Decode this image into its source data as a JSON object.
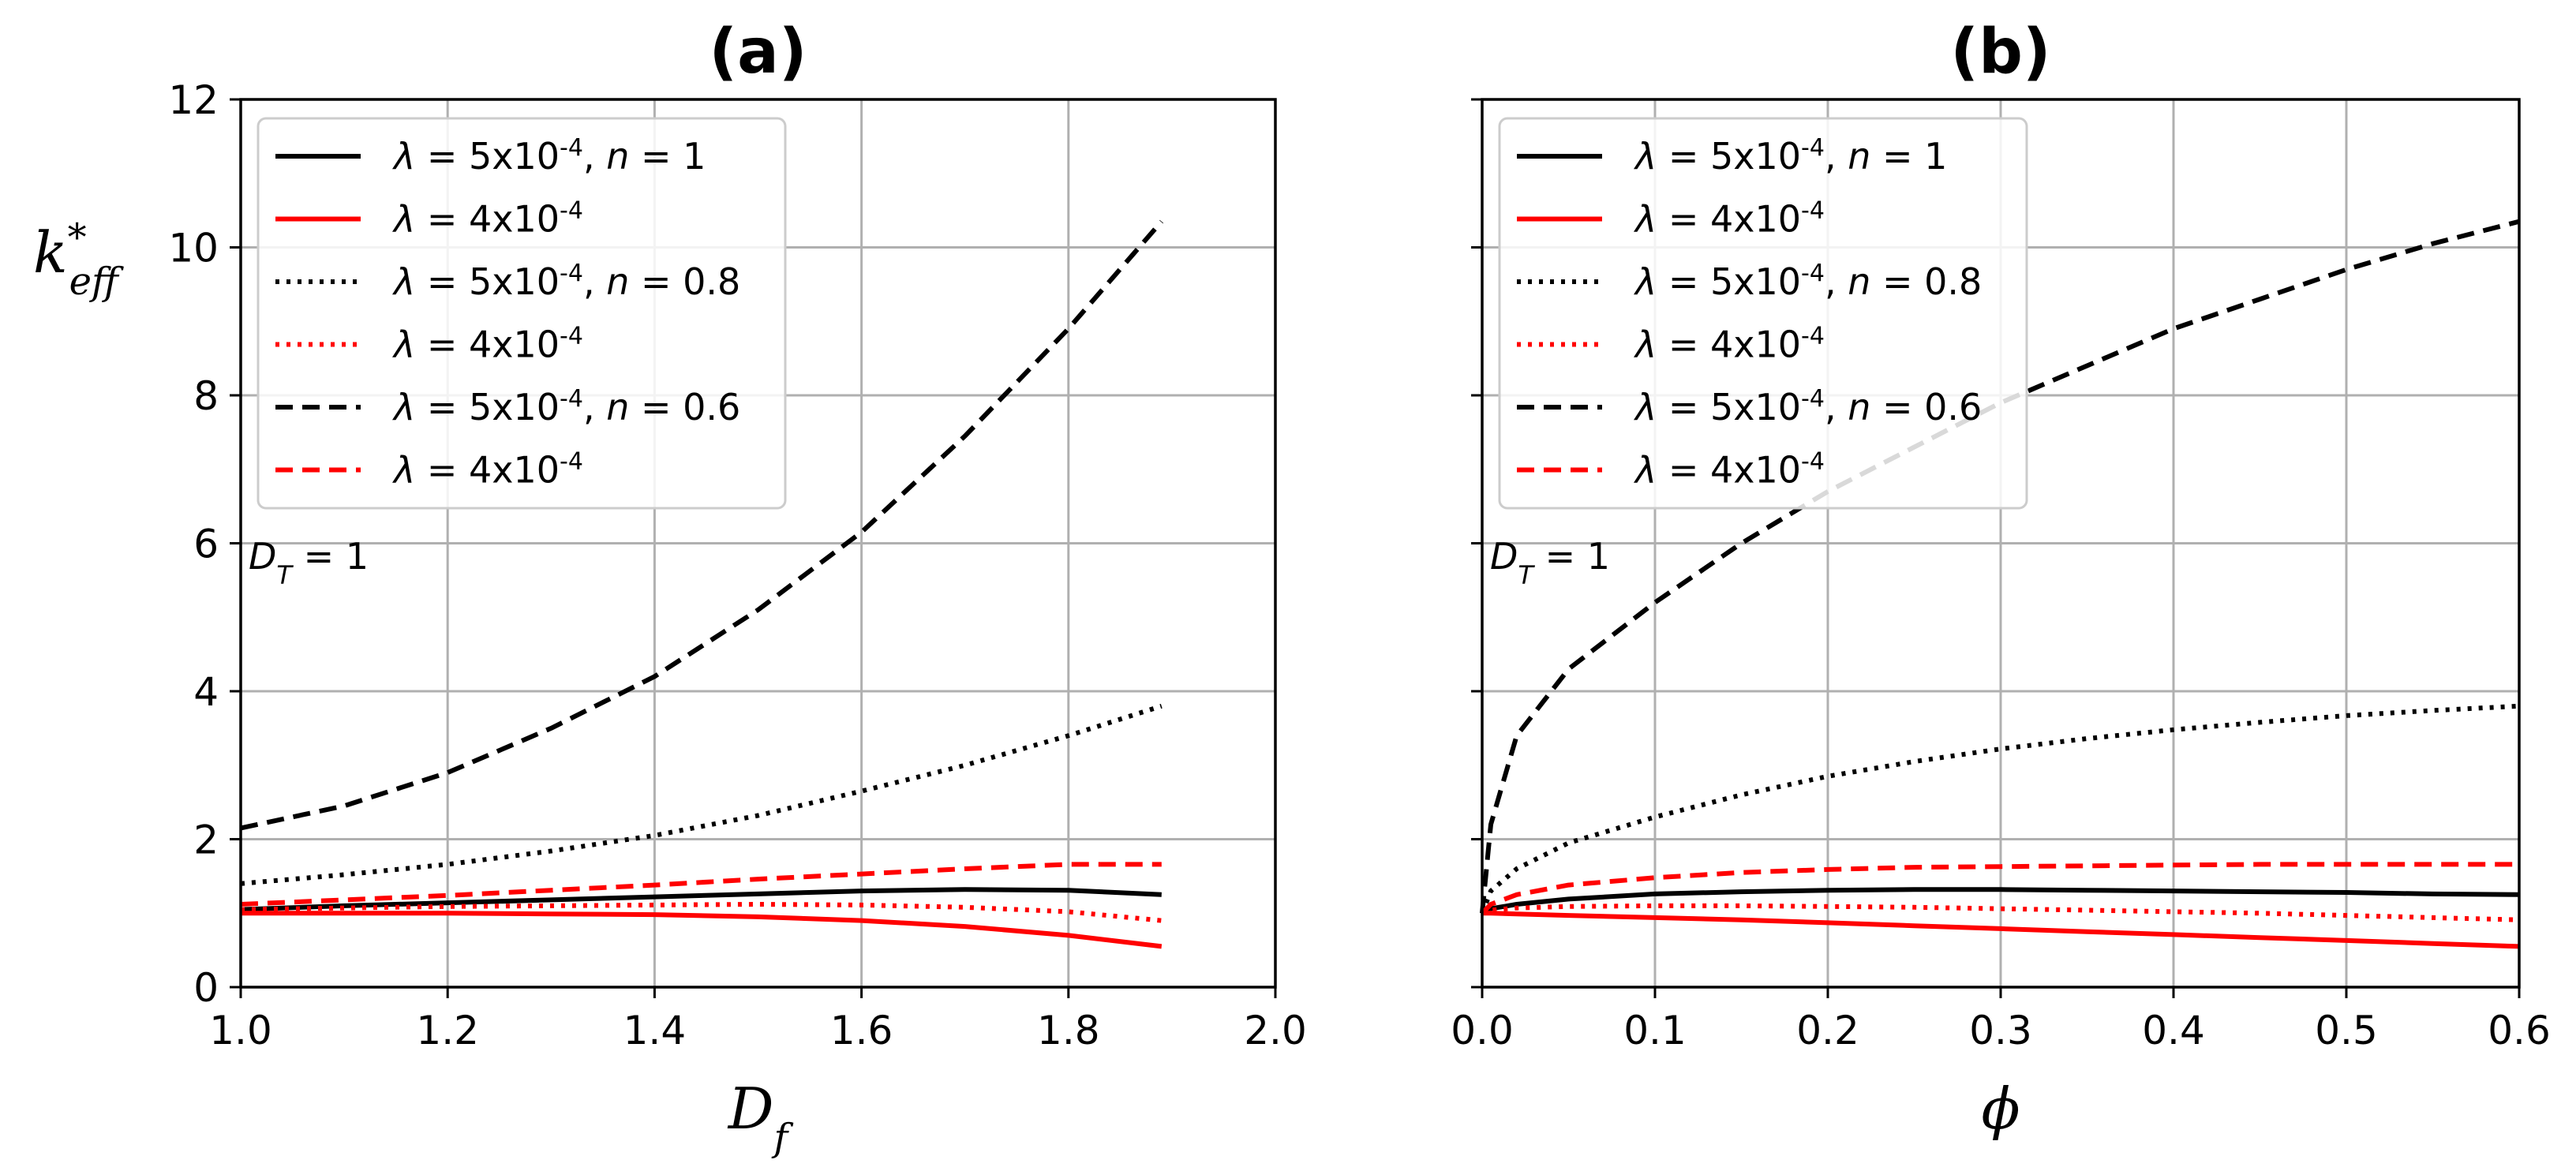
{
  "colors": {
    "black": "#000000",
    "red": "#ff0000",
    "grid": "#b0b0b0"
  },
  "chart_data": [
    {
      "type": "line",
      "title": "(a)",
      "xlabel": "D_f",
      "ylabel": "k*_eff",
      "xlim": [
        1.0,
        2.0
      ],
      "ylim": [
        0,
        12
      ],
      "xticks": [
        "1.0",
        "1.2",
        "1.4",
        "1.6",
        "1.8",
        "2.0"
      ],
      "yticks": [
        "0",
        "2",
        "4",
        "6",
        "8",
        "10",
        "12"
      ],
      "annotation": "D_T = 1",
      "grid": true,
      "legend_position": "top-left",
      "x": [
        1.0,
        1.1,
        1.2,
        1.3,
        1.4,
        1.5,
        1.6,
        1.7,
        1.8,
        1.89
      ],
      "series": [
        {
          "name": "λ = 5x10^-4, n = 1",
          "color": "#000000",
          "style": "solid",
          "values": [
            1.05,
            1.1,
            1.14,
            1.18,
            1.22,
            1.26,
            1.3,
            1.32,
            1.31,
            1.25
          ]
        },
        {
          "name": "λ = 4x10^-4",
          "color": "#ff0000",
          "style": "solid",
          "values": [
            1.0,
            1.0,
            1.0,
            0.99,
            0.98,
            0.95,
            0.9,
            0.82,
            0.7,
            0.55
          ]
        },
        {
          "name": "λ = 5x10^-4, n = 0.8",
          "color": "#000000",
          "style": "dotted",
          "values": [
            1.4,
            1.52,
            1.66,
            1.84,
            2.05,
            2.32,
            2.65,
            3.0,
            3.4,
            3.8
          ]
        },
        {
          "name": "λ = 4x10^-4",
          "color": "#ff0000",
          "style": "dotted",
          "values": [
            1.05,
            1.07,
            1.09,
            1.1,
            1.11,
            1.12,
            1.11,
            1.08,
            1.02,
            0.9
          ]
        },
        {
          "name": "λ = 5x10^-4, n = 0.6",
          "color": "#000000",
          "style": "dashed",
          "values": [
            2.15,
            2.45,
            2.9,
            3.5,
            4.2,
            5.1,
            6.15,
            7.45,
            8.9,
            10.35
          ]
        },
        {
          "name": "λ = 4x10^-4",
          "color": "#ff0000",
          "style": "dashed",
          "values": [
            1.12,
            1.18,
            1.24,
            1.31,
            1.38,
            1.46,
            1.53,
            1.6,
            1.66,
            1.66
          ]
        }
      ]
    },
    {
      "type": "line",
      "title": "(b)",
      "xlabel": "ϕ",
      "ylabel": "",
      "xlim": [
        0.0,
        0.6
      ],
      "ylim": [
        0,
        12
      ],
      "xticks": [
        "0.0",
        "0.1",
        "0.2",
        "0.3",
        "0.4",
        "0.5",
        "0.6"
      ],
      "yticks": [
        "0",
        "2",
        "4",
        "6",
        "8",
        "10",
        "12"
      ],
      "annotation": "D_T = 1",
      "grid": true,
      "legend_position": "top-left",
      "x": [
        0.0,
        0.005,
        0.02,
        0.05,
        0.1,
        0.15,
        0.2,
        0.25,
        0.3,
        0.35,
        0.4,
        0.45,
        0.5,
        0.55,
        0.6
      ],
      "series": [
        {
          "name": "λ = 5x10^-4, n = 1",
          "color": "#000000",
          "style": "solid",
          "values": [
            1.0,
            1.06,
            1.12,
            1.19,
            1.26,
            1.29,
            1.31,
            1.32,
            1.32,
            1.31,
            1.3,
            1.29,
            1.28,
            1.26,
            1.25
          ]
        },
        {
          "name": "λ = 4x10^-4",
          "color": "#ff0000",
          "style": "solid",
          "values": [
            1.0,
            1.0,
            0.99,
            0.97,
            0.94,
            0.91,
            0.87,
            0.83,
            0.79,
            0.75,
            0.71,
            0.67,
            0.63,
            0.59,
            0.55
          ]
        },
        {
          "name": "λ = 5x10^-4, n = 0.8",
          "color": "#000000",
          "style": "dotted",
          "values": [
            1.0,
            1.3,
            1.6,
            1.95,
            2.3,
            2.6,
            2.85,
            3.05,
            3.22,
            3.36,
            3.48,
            3.58,
            3.67,
            3.74,
            3.8
          ]
        },
        {
          "name": "λ = 4x10^-4",
          "color": "#ff0000",
          "style": "dotted",
          "values": [
            1.0,
            1.04,
            1.07,
            1.09,
            1.1,
            1.1,
            1.09,
            1.08,
            1.06,
            1.04,
            1.02,
            1.0,
            0.97,
            0.94,
            0.91
          ]
        },
        {
          "name": "λ = 5x10^-4, n = 0.6",
          "color": "#000000",
          "style": "dashed",
          "values": [
            1.0,
            2.2,
            3.4,
            4.3,
            5.2,
            6.0,
            6.7,
            7.3,
            7.9,
            8.4,
            8.9,
            9.3,
            9.7,
            10.05,
            10.35
          ]
        },
        {
          "name": "λ = 4x10^-4",
          "color": "#ff0000",
          "style": "dashed",
          "values": [
            1.0,
            1.12,
            1.25,
            1.38,
            1.48,
            1.55,
            1.59,
            1.62,
            1.63,
            1.64,
            1.65,
            1.66,
            1.66,
            1.66,
            1.66
          ]
        }
      ]
    }
  ]
}
